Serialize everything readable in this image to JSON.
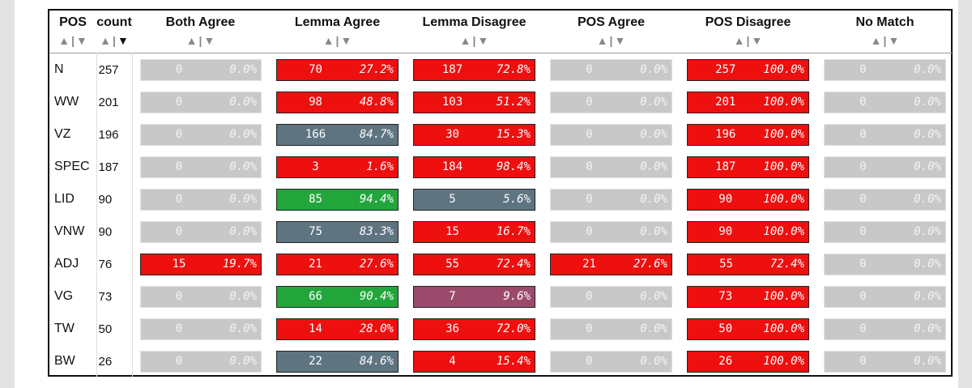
{
  "headers": {
    "pos": "POS",
    "count": "count",
    "cols": [
      "Both Agree",
      "Lemma Agree",
      "Lemma Disagree",
      "POS Agree",
      "POS Disagree",
      "No Match"
    ]
  },
  "sort_icons": {
    "up": "▲",
    "down": "▼",
    "sep": "|"
  },
  "colors": {
    "grey": "#c8c8c8",
    "red": "#ee0f0f",
    "slate": "#5e7480",
    "green": "#22a63c",
    "plum": "#9b4a6c"
  },
  "rows": [
    {
      "pos": "N",
      "count": "257",
      "cells": [
        {
          "n": "0",
          "p": "0.0%",
          "c": "grey"
        },
        {
          "n": "70",
          "p": "27.2%",
          "c": "red"
        },
        {
          "n": "187",
          "p": "72.8%",
          "c": "red"
        },
        {
          "n": "0",
          "p": "0.0%",
          "c": "grey"
        },
        {
          "n": "257",
          "p": "100.0%",
          "c": "red"
        },
        {
          "n": "0",
          "p": "0.0%",
          "c": "grey"
        }
      ]
    },
    {
      "pos": "WW",
      "count": "201",
      "cells": [
        {
          "n": "0",
          "p": "0.0%",
          "c": "grey"
        },
        {
          "n": "98",
          "p": "48.8%",
          "c": "red"
        },
        {
          "n": "103",
          "p": "51.2%",
          "c": "red"
        },
        {
          "n": "0",
          "p": "0.0%",
          "c": "grey"
        },
        {
          "n": "201",
          "p": "100.0%",
          "c": "red"
        },
        {
          "n": "0",
          "p": "0.0%",
          "c": "grey"
        }
      ]
    },
    {
      "pos": "VZ",
      "count": "196",
      "cells": [
        {
          "n": "0",
          "p": "0.0%",
          "c": "grey"
        },
        {
          "n": "166",
          "p": "84.7%",
          "c": "slate"
        },
        {
          "n": "30",
          "p": "15.3%",
          "c": "red"
        },
        {
          "n": "0",
          "p": "0.0%",
          "c": "grey"
        },
        {
          "n": "196",
          "p": "100.0%",
          "c": "red"
        },
        {
          "n": "0",
          "p": "0.0%",
          "c": "grey"
        }
      ]
    },
    {
      "pos": "SPEC",
      "count": "187",
      "cells": [
        {
          "n": "0",
          "p": "0.0%",
          "c": "grey"
        },
        {
          "n": "3",
          "p": "1.6%",
          "c": "red"
        },
        {
          "n": "184",
          "p": "98.4%",
          "c": "red"
        },
        {
          "n": "0",
          "p": "0.0%",
          "c": "grey"
        },
        {
          "n": "187",
          "p": "100.0%",
          "c": "red"
        },
        {
          "n": "0",
          "p": "0.0%",
          "c": "grey"
        }
      ]
    },
    {
      "pos": "LID",
      "count": "90",
      "cells": [
        {
          "n": "0",
          "p": "0.0%",
          "c": "grey"
        },
        {
          "n": "85",
          "p": "94.4%",
          "c": "green"
        },
        {
          "n": "5",
          "p": "5.6%",
          "c": "slate"
        },
        {
          "n": "0",
          "p": "0.0%",
          "c": "grey"
        },
        {
          "n": "90",
          "p": "100.0%",
          "c": "red"
        },
        {
          "n": "0",
          "p": "0.0%",
          "c": "grey"
        }
      ]
    },
    {
      "pos": "VNW",
      "count": "90",
      "cells": [
        {
          "n": "0",
          "p": "0.0%",
          "c": "grey"
        },
        {
          "n": "75",
          "p": "83.3%",
          "c": "slate"
        },
        {
          "n": "15",
          "p": "16.7%",
          "c": "red"
        },
        {
          "n": "0",
          "p": "0.0%",
          "c": "grey"
        },
        {
          "n": "90",
          "p": "100.0%",
          "c": "red"
        },
        {
          "n": "0",
          "p": "0.0%",
          "c": "grey"
        }
      ]
    },
    {
      "pos": "ADJ",
      "count": "76",
      "cells": [
        {
          "n": "15",
          "p": "19.7%",
          "c": "red"
        },
        {
          "n": "21",
          "p": "27.6%",
          "c": "red"
        },
        {
          "n": "55",
          "p": "72.4%",
          "c": "red"
        },
        {
          "n": "21",
          "p": "27.6%",
          "c": "red"
        },
        {
          "n": "55",
          "p": "72.4%",
          "c": "red"
        },
        {
          "n": "0",
          "p": "0.0%",
          "c": "grey"
        }
      ]
    },
    {
      "pos": "VG",
      "count": "73",
      "cells": [
        {
          "n": "0",
          "p": "0.0%",
          "c": "grey"
        },
        {
          "n": "66",
          "p": "90.4%",
          "c": "green"
        },
        {
          "n": "7",
          "p": "9.6%",
          "c": "plum"
        },
        {
          "n": "0",
          "p": "0.0%",
          "c": "grey"
        },
        {
          "n": "73",
          "p": "100.0%",
          "c": "red"
        },
        {
          "n": "0",
          "p": "0.0%",
          "c": "grey"
        }
      ]
    },
    {
      "pos": "TW",
      "count": "50",
      "cells": [
        {
          "n": "0",
          "p": "0.0%",
          "c": "grey"
        },
        {
          "n": "14",
          "p": "28.0%",
          "c": "red"
        },
        {
          "n": "36",
          "p": "72.0%",
          "c": "red"
        },
        {
          "n": "0",
          "p": "0.0%",
          "c": "grey"
        },
        {
          "n": "50",
          "p": "100.0%",
          "c": "red"
        },
        {
          "n": "0",
          "p": "0.0%",
          "c": "grey"
        }
      ]
    },
    {
      "pos": "BW",
      "count": "26",
      "cells": [
        {
          "n": "0",
          "p": "0.0%",
          "c": "grey"
        },
        {
          "n": "22",
          "p": "84.6%",
          "c": "slate"
        },
        {
          "n": "4",
          "p": "15.4%",
          "c": "red"
        },
        {
          "n": "0",
          "p": "0.0%",
          "c": "grey"
        },
        {
          "n": "26",
          "p": "100.0%",
          "c": "red"
        },
        {
          "n": "0",
          "p": "0.0%",
          "c": "grey"
        }
      ]
    }
  ]
}
